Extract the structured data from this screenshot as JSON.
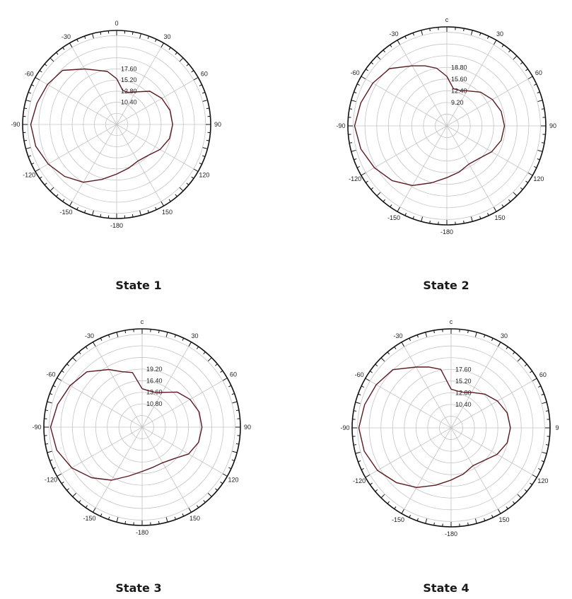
{
  "chart_data": [
    {
      "type": "polar-line",
      "caption": "State 1",
      "angle_labels": [
        "0",
        "30",
        "60",
        "90",
        "120",
        "150",
        "-180",
        "-150",
        "-120",
        "-90",
        "-60",
        "-30"
      ],
      "ring_labels": [
        "10.40",
        "12.80",
        "15.20",
        "17.60"
      ],
      "series": [
        {
          "theta": [
            0,
            10,
            20,
            30,
            45,
            60,
            75,
            90,
            105,
            120,
            135,
            150,
            165,
            180,
            -165,
            -150,
            -135,
            -120,
            -105,
            -90,
            -75,
            -60,
            -45,
            -30,
            -20,
            -10
          ],
          "r": [
            10.7,
            8.1,
            8.0,
            8.8,
            11.0,
            12.2,
            12.9,
            13.1,
            12.8,
            11.7,
            10.3,
            9.9,
            10.6,
            11.6,
            13.3,
            15.6,
            17.2,
            18.5,
            19.6,
            20.1,
            19.3,
            18.7,
            17.9,
            15.0,
            13.5,
            12.6
          ]
        }
      ]
    },
    {
      "type": "polar-line",
      "caption": "State 2",
      "angle_labels": [
        "c",
        "30",
        "60",
        "90",
        "120",
        "150",
        "-180",
        "-150",
        "-120",
        "-90",
        "-60",
        "-30"
      ],
      "ring_labels": [
        "9.20",
        "12.40",
        "15.60",
        "18.80"
      ],
      "series": [
        {
          "theta": [
            0,
            10,
            20,
            30,
            45,
            60,
            75,
            90,
            105,
            120,
            135,
            150,
            165,
            180,
            -165,
            -150,
            -135,
            -120,
            -105,
            -90,
            -75,
            -60,
            -45,
            -30,
            -20,
            -10
          ],
          "r": [
            11.0,
            8.4,
            8.4,
            9.0,
            10.6,
            11.7,
            12.5,
            12.8,
            12.5,
            11.5,
            10.2,
            9.8,
            10.6,
            11.5,
            13.1,
            15.3,
            17.2,
            18.6,
            19.8,
            20.5,
            19.8,
            19.0,
            18.0,
            15.4,
            14.2,
            13.0
          ]
        }
      ]
    },
    {
      "type": "polar-line",
      "caption": "State 3",
      "angle_labels": [
        "c",
        "30",
        "60",
        "90",
        "120",
        "150",
        "-180",
        "-150",
        "-120",
        "-90",
        "-60",
        "-30"
      ],
      "ring_labels": [
        "10.80",
        "13.60",
        "16.40",
        "19.20"
      ],
      "series": [
        {
          "theta": [
            0,
            10,
            20,
            30,
            45,
            60,
            75,
            90,
            105,
            120,
            135,
            150,
            165,
            180,
            -165,
            -150,
            -135,
            -120,
            -105,
            -90,
            -75,
            -60,
            -45,
            -30,
            -20,
            -10
          ],
          "r": [
            8.6,
            8.3,
            8.3,
            9.0,
            11.1,
            12.4,
            13.2,
            13.4,
            13.1,
            12.0,
            10.0,
            9.2,
            9.3,
            9.9,
            11.3,
            13.7,
            16.0,
            18.2,
            19.8,
            20.5,
            19.6,
            18.6,
            17.5,
            14.9,
            13.2,
            12.4
          ]
        }
      ]
    },
    {
      "type": "polar-line",
      "caption": "State 4",
      "angle_labels": [
        "c",
        "30",
        "60",
        "9",
        "120",
        "150",
        "-180",
        "-150",
        "-120",
        "-90",
        "-60",
        "-30"
      ],
      "ring_labels": [
        "10.40",
        "12.80",
        "15.20",
        "17.60"
      ],
      "series": [
        {
          "theta": [
            0,
            10,
            20,
            30,
            45,
            60,
            75,
            90,
            105,
            120,
            135,
            150,
            165,
            180,
            -165,
            -150,
            -135,
            -120,
            -105,
            -90,
            -75,
            -60,
            -45,
            -30,
            -20,
            -10
          ],
          "r": [
            8.6,
            8.3,
            8.4,
            9.1,
            10.6,
            11.9,
            12.9,
            13.2,
            12.9,
            11.8,
            10.3,
            9.7,
            10.6,
            11.6,
            13.2,
            15.3,
            17.2,
            18.9,
            20.0,
            20.5,
            19.9,
            19.2,
            18.3,
            15.6,
            14.4,
            13.2
          ]
        }
      ]
    }
  ],
  "style": {
    "curve_color": "#5a1a1f",
    "grid_color": "#c4c4c4",
    "axis_color": "#111111"
  }
}
